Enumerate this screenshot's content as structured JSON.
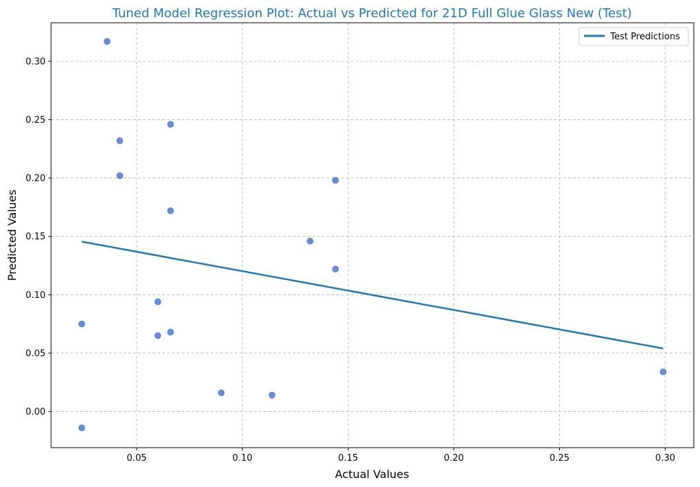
{
  "chart_data": {
    "type": "scatter",
    "title": "Tuned Model Regression Plot: Actual vs Predicted for 21D Full Glue Glass New (Test)",
    "xlabel": "Actual Values",
    "ylabel": "Predicted Values",
    "xlim": [
      0.0095,
      0.3135
    ],
    "ylim": [
      -0.031,
      0.333
    ],
    "xticks": [
      0.05,
      0.1,
      0.15,
      0.2,
      0.25,
      0.3
    ],
    "xtick_labels": [
      "0.05",
      "0.10",
      "0.15",
      "0.20",
      "0.25",
      "0.30"
    ],
    "yticks": [
      0.0,
      0.05,
      0.1,
      0.15,
      0.2,
      0.25,
      0.3
    ],
    "ytick_labels": [
      "0.00",
      "0.05",
      "0.10",
      "0.15",
      "0.20",
      "0.25",
      "0.30"
    ],
    "grid": true,
    "legend": {
      "placement": "top-right",
      "entries": [
        "Test Predictions"
      ]
    },
    "points": {
      "color": "#4472c4",
      "x": [
        0.036,
        0.066,
        0.042,
        0.042,
        0.066,
        0.144,
        0.132,
        0.144,
        0.06,
        0.024,
        0.06,
        0.066,
        0.09,
        0.114,
        0.024,
        0.299
      ],
      "y": [
        0.317,
        0.246,
        0.232,
        0.202,
        0.172,
        0.198,
        0.146,
        0.122,
        0.094,
        0.075,
        0.065,
        0.068,
        0.016,
        0.014,
        -0.014,
        0.034
      ]
    },
    "series": [
      {
        "name": "Test Predictions",
        "type": "line",
        "color": "#1f77b4",
        "x": [
          0.024,
          0.299
        ],
        "y": [
          0.1455,
          0.054
        ]
      }
    ]
  }
}
